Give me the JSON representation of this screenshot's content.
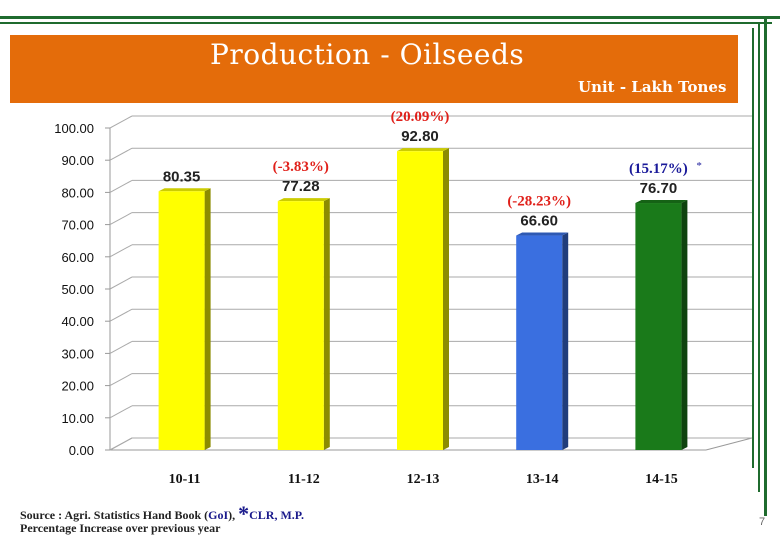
{
  "header": {
    "title": "Production - Oilseeds",
    "unit": "Unit - Lakh Tones",
    "bg_color": "#e46c0a"
  },
  "chart_data": {
    "type": "bar",
    "categories": [
      "10-11",
      "11-12",
      "12-13",
      "13-14",
      "14-15"
    ],
    "values": [
      80.35,
      77.28,
      92.8,
      66.6,
      76.7
    ],
    "value_labels": [
      "80.35",
      "77.28",
      "92.80",
      "66.60",
      "76.70"
    ],
    "pct_labels": [
      "",
      "(-3.83%)",
      "(20.09%)",
      "(-28.23%)",
      "(15.17%)"
    ],
    "pct_suffix": [
      "",
      "",
      "",
      "",
      "*"
    ],
    "bar_colors": [
      "#ffff00",
      "#ffff00",
      "#ffff00",
      "#3a6fe0",
      "#1a7a1a"
    ],
    "y_ticks": [
      "0.00",
      "10.00",
      "20.00",
      "30.00",
      "40.00",
      "50.00",
      "60.00",
      "70.00",
      "80.00",
      "90.00",
      "100.00"
    ],
    "ylim": [
      0,
      100
    ],
    "grid": true,
    "title": "Production - Oilseeds"
  },
  "footer": {
    "source_prefix": "Source : Agri. Statistics Hand Book (",
    "source_goi": "GoI",
    "source_mid": "), ",
    "source_star": "*",
    "source_clr": "CLR, M.P.",
    "note": "Percentage Increase over previous year",
    "page_number": "7"
  }
}
